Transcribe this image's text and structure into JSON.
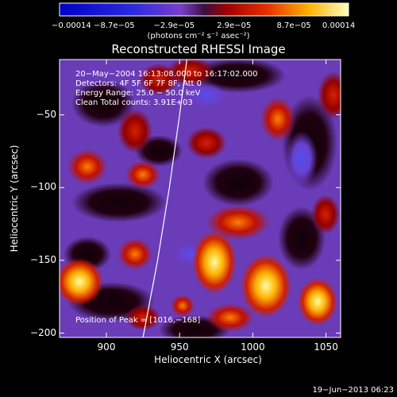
{
  "chart_data": {
    "type": "heatmap",
    "title": "Reconstructed RHESSI Image",
    "xlabel": "Heliocentric X (arcsec)",
    "ylabel": "Heliocentric Y (arcsec)",
    "xlim": [
      868,
      1060
    ],
    "ylim": [
      -203,
      -12
    ],
    "x_ticks": [
      900,
      950,
      1000,
      1050
    ],
    "y_ticks": [
      -50,
      -100,
      -150,
      -200
    ],
    "x_tick_labels": [
      "900",
      "950",
      "1000",
      "1050"
    ],
    "y_tick_labels": [
      "−50",
      "−100",
      "−150",
      "−200"
    ],
    "colorbar": {
      "range": [
        -0.00014,
        0.00014
      ],
      "ticks": [
        -0.00014,
        -8.7e-05,
        -2.9e-05,
        2.9e-05,
        8.7e-05,
        0.00014
      ],
      "tick_labels": [
        "−0.00014",
        "−8.7e−05",
        "−2.9e−05",
        "2.9e−05",
        "8.7e−05",
        "0.00014"
      ],
      "units": "(photons cm⁻² s⁻¹ asec⁻²)"
    },
    "info_lines": [
      "20−May−2004 16:13:08.000 to 16:17:02.000",
      "Detectors: 4F 5F 6F 7F 8F, Att 0",
      "Energy Range: 25.0 − 50.0 keV",
      "Clean     Total counts: 3.91E+03"
    ],
    "peak_label": "Position of Peak = [1016,−168]",
    "peak": [
      1016,
      -168
    ],
    "footer": "19−Jun−2013 06:23",
    "limb_points": [
      [
        925,
        -203
      ],
      [
        935,
        -150
      ],
      [
        943,
        -100
      ],
      [
        950,
        -50
      ],
      [
        955,
        -12
      ]
    ]
  }
}
